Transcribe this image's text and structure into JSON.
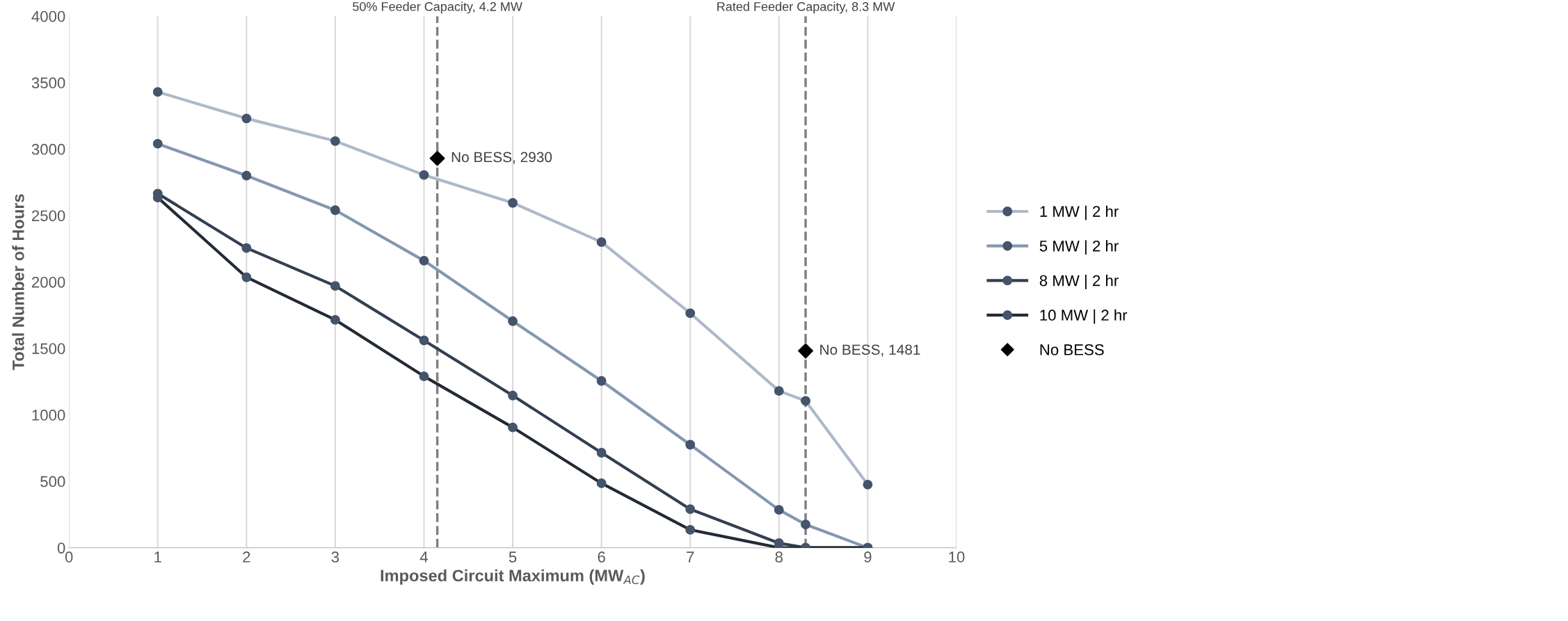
{
  "chart_data": {
    "type": "line",
    "xlabel": "Imposed Circuit Maximum (MW$_{AC}$)",
    "ylabel": "Total Number of Hours",
    "xlim": [
      0,
      10
    ],
    "xticks": [
      0,
      1,
      2,
      3,
      4,
      5,
      6,
      7,
      8,
      9,
      10
    ],
    "ylim": [
      0,
      4000
    ],
    "yticks": [
      0,
      500,
      1000,
      1500,
      2000,
      2500,
      3000,
      3500,
      4000
    ],
    "grid": "x",
    "legend": "right",
    "marker": "circle",
    "series": [
      {
        "name": "1 MW | 2 hr",
        "color": "#adb9ca",
        "x": [
          1,
          2,
          3,
          4,
          5,
          6,
          7,
          8,
          8.3,
          9
        ],
        "values": [
          3430,
          3230,
          3060,
          2805,
          2595,
          2300,
          1765,
          1180,
          1105,
          475
        ]
      },
      {
        "name": "5 MW | 2 hr",
        "color": "#8497b0",
        "x": [
          1,
          2,
          3,
          4,
          5,
          6,
          7,
          8,
          8.3,
          9
        ],
        "values": [
          3040,
          2800,
          2540,
          2160,
          1705,
          1255,
          775,
          285,
          175,
          0
        ]
      },
      {
        "name": "8 MW | 2 hr",
        "color": "#333f50",
        "x": [
          1,
          2,
          3,
          4,
          5,
          6,
          7,
          8,
          8.3,
          9
        ],
        "values": [
          2665,
          2255,
          1970,
          1560,
          1145,
          715,
          290,
          35,
          0,
          0
        ]
      },
      {
        "name": "10 MW | 2 hr",
        "color": "#222a35",
        "x": [
          1,
          2,
          3,
          4,
          5,
          6,
          7,
          8,
          8.3,
          9
        ],
        "values": [
          2635,
          2035,
          1715,
          1290,
          905,
          485,
          135,
          0,
          0,
          0
        ]
      },
      {
        "name": "No BESS",
        "type": "scatter",
        "marker": "diamond",
        "color": "#000000",
        "x": [
          4.15,
          8.3
        ],
        "values": [
          2930,
          1481
        ]
      }
    ],
    "ref_lines": [
      {
        "axis": "x",
        "value": 4.15,
        "label": "50% Feeder Capacity, 4.2 MW",
        "color": "#808080",
        "line_style": "dashed"
      },
      {
        "axis": "x",
        "value": 8.3,
        "label": "Rated Feeder Capacity, 8.3 MW",
        "color": "#808080",
        "line_style": "dashed"
      }
    ],
    "annotations": [
      {
        "text": "No BESS, 2930",
        "x": 4.15,
        "y": 2930
      },
      {
        "text": "No BESS, 1481",
        "x": 8.3,
        "y": 1481
      }
    ]
  }
}
